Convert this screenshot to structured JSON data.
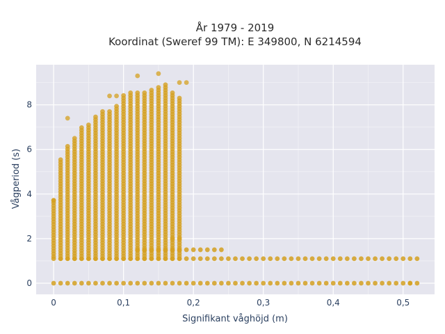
{
  "chart_data": {
    "type": "scatter",
    "title": [
      "År 1979 - 2019",
      "Koordinat (Sweref 99 TM): E 349800, N 6214594"
    ],
    "xlabel": "Signifikant våghöjd (m)",
    "ylabel": "Vågperiod (s)",
    "xlim": [
      -0.025,
      0.545
    ],
    "ylim": [
      -0.5,
      9.8
    ],
    "x_ticks": [
      0,
      0.1,
      0.2,
      0.3,
      0.4,
      0.5
    ],
    "x_tick_labels": [
      "0",
      "0,1",
      "0,2",
      "0,3",
      "0,4",
      "0,5"
    ],
    "y_ticks": [
      0,
      2,
      4,
      6,
      8
    ],
    "y_tick_labels": [
      "0",
      "2",
      "4",
      "6",
      "8"
    ],
    "grid": true,
    "point_color": "#d4a020",
    "plot_background": "#e5e5ee",
    "series": [
      {
        "columns": [
          {
            "x": 0.0,
            "ymin": 1.2,
            "ymax": 3.8
          },
          {
            "x": 0.01,
            "ymin": 1.1,
            "ymax": 5.6
          },
          {
            "x": 0.02,
            "ymin": 1.1,
            "ymax": 6.2
          },
          {
            "x": 0.03,
            "ymin": 1.1,
            "ymax": 6.5
          },
          {
            "x": 0.04,
            "ymin": 1.1,
            "ymax": 7.0
          },
          {
            "x": 0.05,
            "ymin": 1.1,
            "ymax": 7.2
          },
          {
            "x": 0.06,
            "ymin": 1.1,
            "ymax": 7.5
          },
          {
            "x": 0.07,
            "ymin": 1.1,
            "ymax": 7.8
          },
          {
            "x": 0.08,
            "ymin": 1.1,
            "ymax": 7.8
          },
          {
            "x": 0.09,
            "ymin": 1.1,
            "ymax": 8.0
          },
          {
            "x": 0.1,
            "ymin": 1.1,
            "ymax": 8.5
          },
          {
            "x": 0.11,
            "ymin": 1.1,
            "ymax": 8.6
          },
          {
            "x": 0.12,
            "ymin": 1.1,
            "ymax": 8.6
          },
          {
            "x": 0.13,
            "ymin": 1.1,
            "ymax": 8.6
          },
          {
            "x": 0.14,
            "ymin": 1.1,
            "ymax": 8.7
          },
          {
            "x": 0.15,
            "ymin": 1.1,
            "ymax": 8.8
          },
          {
            "x": 0.16,
            "ymin": 1.1,
            "ymax": 9.0
          },
          {
            "x": 0.17,
            "ymin": 1.1,
            "ymax": 8.6
          },
          {
            "x": 0.18,
            "ymin": 1.1,
            "ymax": 8.3
          }
        ],
        "low_band": {
          "xmin": 0.0,
          "xmax": 0.52,
          "step": 0.01,
          "ys": [
            0,
            1.1
          ]
        },
        "mid_band": {
          "xmin": 0.12,
          "xmax": 0.24,
          "step": 0.01,
          "y": 1.5
        },
        "outliers": [
          {
            "x": 0.12,
            "y": 9.3
          },
          {
            "x": 0.15,
            "y": 9.4
          },
          {
            "x": 0.18,
            "y": 9.0
          },
          {
            "x": 0.19,
            "y": 9.0
          },
          {
            "x": 0.02,
            "y": 7.4
          },
          {
            "x": 0.17,
            "y": 2.0
          },
          {
            "x": 0.18,
            "y": 2.0
          },
          {
            "x": 0.0,
            "y": 3.7
          },
          {
            "x": 0.08,
            "y": 8.4
          },
          {
            "x": 0.09,
            "y": 8.4
          },
          {
            "x": 0.51,
            "y": 0.0
          }
        ]
      }
    ]
  }
}
